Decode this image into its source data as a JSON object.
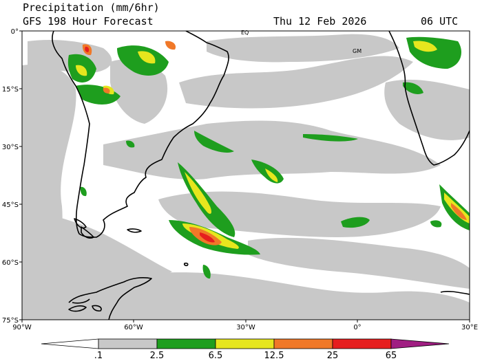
{
  "header": {
    "title": "Precipitation (mm/6hr)",
    "subtitle": "GFS 198 Hour Forecast",
    "date": "Thu 12 Feb 2026",
    "time": "06 UTC"
  },
  "map": {
    "lat_labels": [
      "0°",
      "15°S",
      "30°S",
      "45°S",
      "60°S",
      "75°S"
    ],
    "lon_labels": [
      "90°W",
      "60°W",
      "30°W",
      "0°",
      "30°E"
    ],
    "markers": [
      "EQ",
      "GM"
    ]
  },
  "colorbar": {
    "labels": [
      ".1",
      "2.5",
      "6.5",
      "12.5",
      "25",
      "65"
    ],
    "colors": [
      "#ffffff",
      "#c8c8c8",
      "#1e9e1e",
      "#e6e61e",
      "#f07828",
      "#e61e1e",
      "#a01e82"
    ]
  }
}
